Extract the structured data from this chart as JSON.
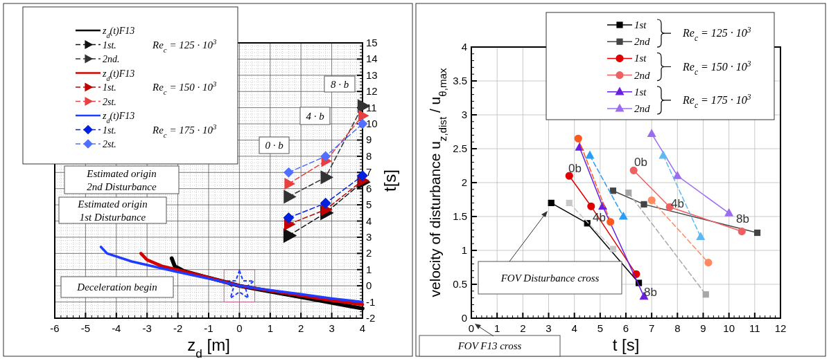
{
  "chart_data": [
    {
      "type": "line",
      "xlabel": "z$_{d}$  [m]",
      "ylabel": "t[s]",
      "xlim": [
        -6,
        4
      ],
      "ylim": [
        -2,
        15
      ],
      "xticks": [
        -6,
        -5,
        -4,
        -3,
        -2,
        -1,
        0,
        1,
        2,
        3,
        4
      ],
      "yticks": [
        -2,
        -1,
        0,
        1,
        2,
        3,
        4,
        5,
        6,
        7,
        8,
        9,
        10,
        11,
        12,
        13,
        14,
        15
      ],
      "grid": true,
      "legend": "top left",
      "series": [
        {
          "name": "z$_{d}$(t)F13",
          "color": "#000000",
          "line_style": "solid",
          "marker": "none",
          "x": [
            -2.2,
            -2.1,
            -1.8,
            -1.2,
            -0.5,
            0,
            1,
            2,
            3,
            4
          ],
          "values": [
            1.7,
            1.2,
            0.9,
            0.6,
            0.25,
            0,
            -0.35,
            -0.7,
            -1.05,
            -1.4
          ]
        },
        {
          "name": "1st.",
          "color": "#111111",
          "line_style": "dashed",
          "marker": "triangle",
          "x": [
            1.6,
            2.8,
            4
          ],
          "values": [
            3.1,
            4.5,
            6.4
          ]
        },
        {
          "name": "2nd.",
          "color": "#333333",
          "line_style": "dashed",
          "marker": "triangle",
          "x": [
            1.6,
            2.8,
            4
          ],
          "values": [
            5.5,
            6.7,
            11.1
          ]
        },
        {
          "name": "z$_{d}$(t)F13",
          "color": "#d40000",
          "line_style": "solid",
          "marker": "none",
          "x": [
            -3.2,
            -3,
            -2.5,
            -1.5,
            -0.5,
            0,
            1,
            2,
            3,
            4
          ],
          "values": [
            2,
            1.6,
            1.2,
            0.75,
            0.25,
            0,
            -0.3,
            -0.6,
            -0.9,
            -1.15
          ]
        },
        {
          "name": "1st.",
          "color": "#c00000",
          "line_style": "dashed",
          "marker": "triangle",
          "x": [
            1.6,
            2.8,
            4
          ],
          "values": [
            3.8,
            4.7,
            6.5
          ]
        },
        {
          "name": "2st.",
          "color": "#e84040",
          "line_style": "dashed",
          "marker": "triangle",
          "x": [
            1.6,
            2.8,
            4
          ],
          "values": [
            6.3,
            7.7,
            10.5
          ]
        },
        {
          "name": "z$_{d}$(t)F13",
          "color": "#1f3cff",
          "line_style": "solid",
          "marker": "none",
          "x": [
            -4.5,
            -4.3,
            -3.5,
            -2,
            -1,
            0,
            1,
            2,
            3,
            4
          ],
          "values": [
            2.4,
            2,
            1.5,
            0.85,
            0.45,
            0,
            -0.27,
            -0.52,
            -0.78,
            -1
          ]
        },
        {
          "name": "1st.",
          "color": "#0020e0",
          "line_style": "dashed",
          "marker": "diamond",
          "x": [
            1.6,
            2.8,
            4
          ],
          "values": [
            4.2,
            5.1,
            6.8
          ]
        },
        {
          "name": "2st.",
          "color": "#5070ff",
          "line_style": "dashed",
          "marker": "diamond",
          "x": [
            1.6,
            2.8,
            4
          ],
          "values": [
            7,
            8,
            10
          ]
        }
      ],
      "annotations": [
        "Re$_{c}$ = 125 · 10$^{3}$",
        "Re$_{c}$ = 150 · 10$^{3}$",
        "Re$_{c}$ = 175 · 10$^{3}$",
        "Estimated origin\n2nd Disturbance",
        "Estimated origin\n1st Disturbance",
        "Deceleration begin",
        "0 · b",
        "4 · b",
        "8 · b"
      ]
    },
    {
      "type": "line",
      "xlabel": "t [s]",
      "ylabel": "velocity of disturbance u$_{z,dist}$ / u$_{θ,max}$",
      "xlim": [
        0,
        12
      ],
      "ylim": [
        0,
        4
      ],
      "xticks": [
        0,
        1,
        2,
        3,
        4,
        5,
        6,
        7,
        8,
        9,
        10,
        11,
        12
      ],
      "yticks": [
        0,
        0.5,
        1,
        1.5,
        2,
        2.5,
        3,
        3.5,
        4
      ],
      "grid": true,
      "legend": "top",
      "series": [
        {
          "name": "1st",
          "color": "#000000",
          "line_style": "solid",
          "marker": "square",
          "x": [
            3.1,
            4.5,
            6.5
          ],
          "values": [
            1.7,
            1.4,
            0.52
          ]
        },
        {
          "name": "2nd",
          "color": "#444444",
          "line_style": "solid",
          "marker": "square",
          "x": [
            5.5,
            6.7,
            11.1
          ],
          "values": [
            1.88,
            1.68,
            1.26
          ]
        },
        {
          "name": "1st",
          "color": "#e00000",
          "line_style": "solid",
          "marker": "circle",
          "x": [
            3.8,
            4.65,
            6.4
          ],
          "values": [
            2.1,
            1.65,
            0.65
          ]
        },
        {
          "name": "2nd",
          "color": "#f06060",
          "line_style": "solid",
          "marker": "circle",
          "x": [
            6.3,
            7.7,
            10.5
          ],
          "values": [
            2.18,
            1.64,
            1.28
          ]
        },
        {
          "name": "1st",
          "color": "#6a1fe0",
          "line_style": "solid",
          "marker": "triangle",
          "x": [
            4.2,
            5.1,
            6.7
          ],
          "values": [
            2.52,
            1.65,
            0.32
          ]
        },
        {
          "name": "2nd",
          "color": "#9b6cf0",
          "line_style": "solid",
          "marker": "triangle",
          "x": [
            7,
            8,
            10
          ],
          "values": [
            2.72,
            2.1,
            1.55
          ]
        },
        {
          "color": "#c8c8c8",
          "line_style": "dashed",
          "marker": "square",
          "x": [
            3.8,
            5.5
          ],
          "values": [
            1.7,
            1.02
          ]
        },
        {
          "color": "#a8a8a8",
          "line_style": "dashed",
          "marker": "square",
          "x": [
            6.1,
            9.1
          ],
          "values": [
            1.85,
            0.35
          ]
        },
        {
          "color": "#ff5a1e",
          "line_style": "dashed",
          "marker": "circle",
          "x": [
            4.15,
            5.4
          ],
          "values": [
            2.65,
            1.42
          ]
        },
        {
          "color": "#ff8a60",
          "line_style": "dashed",
          "marker": "circle",
          "x": [
            7,
            9.2
          ],
          "values": [
            1.74,
            0.82
          ]
        },
        {
          "color": "#2a9df4",
          "line_style": "dashed",
          "marker": "triangle",
          "x": [
            4.6,
            5.9
          ],
          "values": [
            2.4,
            1.5
          ]
        },
        {
          "color": "#60b8f0",
          "line_style": "dashed",
          "marker": "triangle",
          "x": [
            7.45,
            8.9
          ],
          "values": [
            2.4,
            1.2
          ]
        }
      ],
      "annotations": [
        "Re$_{c}$ = 125 · 10$^{3}$",
        "Re$_{c}$ = 150 · 10$^{3}$",
        "Re$_{c}$ = 175 · 10$^{3}$",
        "0b",
        "0b",
        "4b",
        "4b",
        "8b",
        "8b",
        "FOV Disturbance cross",
        "FOV F13 cross"
      ]
    }
  ]
}
